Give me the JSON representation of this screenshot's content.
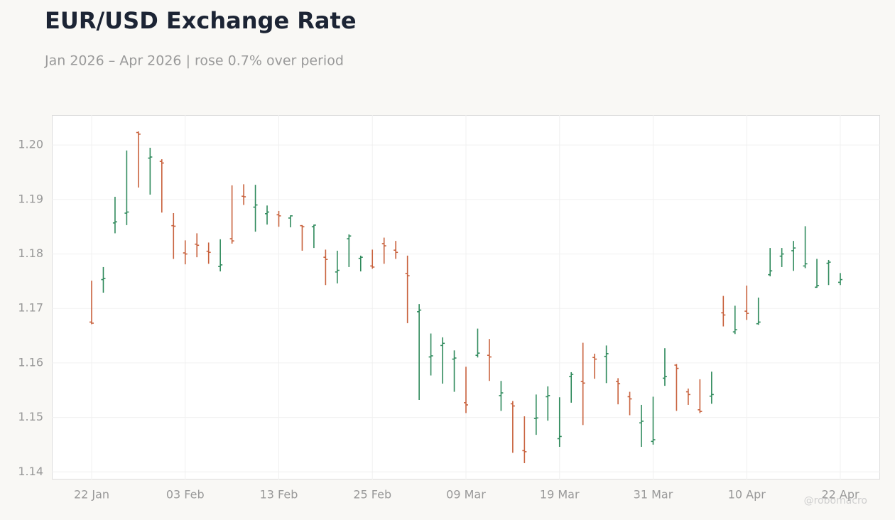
{
  "chart_data": {
    "type": "ohlc",
    "title": "EUR/USD Exchange Rate",
    "subtitle": "Jan 2026 – Apr 2026 | rose 0.7% over period",
    "watermark": "@robomacro",
    "up_color": "#2f8a5c",
    "down_color": "#c8613c",
    "grid": true,
    "x": [
      "2026-01-22",
      "2026-01-23",
      "2026-01-26",
      "2026-01-27",
      "2026-01-28",
      "2026-01-29",
      "2026-01-30",
      "2026-02-02",
      "2026-02-03",
      "2026-02-04",
      "2026-02-05",
      "2026-02-06",
      "2026-02-09",
      "2026-02-10",
      "2026-02-11",
      "2026-02-12",
      "2026-02-13",
      "2026-02-16",
      "2026-02-17",
      "2026-02-18",
      "2026-02-19",
      "2026-02-20",
      "2026-02-23",
      "2026-02-24",
      "2026-02-25",
      "2026-02-26",
      "2026-02-27",
      "2026-03-02",
      "2026-03-03",
      "2026-03-04",
      "2026-03-05",
      "2026-03-06",
      "2026-03-09",
      "2026-03-10",
      "2026-03-11",
      "2026-03-12",
      "2026-03-13",
      "2026-03-16",
      "2026-03-17",
      "2026-03-18",
      "2026-03-19",
      "2026-03-20",
      "2026-03-23",
      "2026-03-24",
      "2026-03-25",
      "2026-03-26",
      "2026-03-27",
      "2026-03-30",
      "2026-03-31",
      "2026-04-01",
      "2026-04-02",
      "2026-04-03",
      "2026-04-06",
      "2026-04-07",
      "2026-04-08",
      "2026-04-09",
      "2026-04-10",
      "2026-04-13",
      "2026-04-14",
      "2026-04-15",
      "2026-04-16",
      "2026-04-17",
      "2026-04-20",
      "2026-04-21",
      "2026-04-22"
    ],
    "open": [
      1.1675,
      1.1753,
      1.1857,
      1.1875,
      1.2023,
      1.1976,
      1.197,
      1.1852,
      1.1802,
      1.1818,
      1.1805,
      1.1777,
      1.1828,
      1.1906,
      1.1886,
      1.1874,
      1.1872,
      1.1866,
      1.1852,
      1.185,
      1.1794,
      1.1767,
      1.1828,
      1.1792,
      1.1778,
      1.1819,
      1.1807,
      1.1764,
      1.1694,
      1.1611,
      1.1632,
      1.1607,
      1.1527,
      1.1614,
      1.1614,
      1.154,
      1.1525,
      1.1439,
      1.1498,
      1.1538,
      1.1461,
      1.1575,
      1.1566,
      1.161,
      1.1612,
      1.1566,
      1.1538,
      1.149,
      1.1456,
      1.1572,
      1.1596,
      1.1547,
      1.1514,
      1.1539,
      1.1692,
      1.1657,
      1.1695,
      1.1672,
      1.1762,
      1.1796,
      1.1806,
      1.1778,
      1.1739,
      1.1783,
      1.1748
    ],
    "high": [
      1.1751,
      1.1776,
      1.1905,
      1.199,
      1.2025,
      1.1995,
      1.1974,
      1.1875,
      1.1825,
      1.1838,
      1.1821,
      1.1827,
      1.1926,
      1.1928,
      1.1927,
      1.1889,
      1.1879,
      1.1871,
      1.1853,
      1.1854,
      1.1808,
      1.1806,
      1.1836,
      1.1797,
      1.1808,
      1.183,
      1.1824,
      1.1797,
      1.1708,
      1.1654,
      1.1647,
      1.1623,
      1.1593,
      1.1663,
      1.1644,
      1.1567,
      1.153,
      1.1502,
      1.1542,
      1.1557,
      1.1537,
      1.1583,
      1.1637,
      1.1617,
      1.1632,
      1.1572,
      1.1547,
      1.1523,
      1.1538,
      1.1627,
      1.1598,
      1.1553,
      1.157,
      1.1584,
      1.1723,
      1.1705,
      1.1742,
      1.172,
      1.1811,
      1.1811,
      1.1824,
      1.1851,
      1.1791,
      1.1789,
      1.1765
    ],
    "low": [
      1.1671,
      1.1729,
      1.1838,
      1.1853,
      1.1922,
      1.1909,
      1.1876,
      1.1791,
      1.1781,
      1.1794,
      1.1782,
      1.1768,
      1.1819,
      1.189,
      1.1841,
      1.1854,
      1.185,
      1.1849,
      1.1806,
      1.1811,
      1.1743,
      1.1746,
      1.1776,
      1.1768,
      1.1773,
      1.1782,
      1.1791,
      1.1673,
      1.1532,
      1.1577,
      1.1562,
      1.1547,
      1.1508,
      1.161,
      1.1567,
      1.1512,
      1.1435,
      1.1416,
      1.1468,
      1.1494,
      1.1446,
      1.1527,
      1.1486,
      1.1571,
      1.1563,
      1.1524,
      1.1504,
      1.1446,
      1.145,
      1.1558,
      1.1512,
      1.1523,
      1.1508,
      1.1525,
      1.1667,
      1.1653,
      1.1679,
      1.167,
      1.1759,
      1.1776,
      1.1769,
      1.1774,
      1.1738,
      1.1743,
      1.1743
    ],
    "close": [
      1.1673,
      1.1755,
      1.1859,
      1.1877,
      1.202,
      1.1978,
      1.1967,
      1.1851,
      1.18,
      1.1816,
      1.1803,
      1.178,
      1.1824,
      1.1905,
      1.189,
      1.1877,
      1.187,
      1.187,
      1.185,
      1.1853,
      1.179,
      1.177,
      1.1833,
      1.1794,
      1.1776,
      1.1815,
      1.1803,
      1.176,
      1.1697,
      1.1613,
      1.1636,
      1.1609,
      1.1523,
      1.1618,
      1.1611,
      1.1545,
      1.1521,
      1.1437,
      1.1499,
      1.154,
      1.1465,
      1.1579,
      1.1563,
      1.1607,
      1.1617,
      1.1562,
      1.1534,
      1.1493,
      1.1459,
      1.1575,
      1.159,
      1.1542,
      1.1511,
      1.1542,
      1.1688,
      1.1661,
      1.1691,
      1.1675,
      1.1769,
      1.18,
      1.1811,
      1.1782,
      1.1742,
      1.1785,
      1.1753
    ],
    "ylim": [
      1.1386,
      1.2055
    ],
    "yticks": [
      {
        "value": 1.14,
        "label": "1.14"
      },
      {
        "value": 1.15,
        "label": "1.15"
      },
      {
        "value": 1.16,
        "label": "1.16"
      },
      {
        "value": 1.17,
        "label": "1.17"
      },
      {
        "value": 1.18,
        "label": "1.18"
      },
      {
        "value": 1.19,
        "label": "1.19"
      },
      {
        "value": 1.2,
        "label": "1.20"
      }
    ],
    "xticks": [
      {
        "value": "2026-01-22",
        "label": "22 Jan"
      },
      {
        "value": "2026-02-03",
        "label": "03 Feb"
      },
      {
        "value": "2026-02-13",
        "label": "13 Feb"
      },
      {
        "value": "2026-02-25",
        "label": "25 Feb"
      },
      {
        "value": "2026-03-09",
        "label": "09 Mar"
      },
      {
        "value": "2026-03-19",
        "label": "19 Mar"
      },
      {
        "value": "2026-03-31",
        "label": "31 Mar"
      },
      {
        "value": "2026-04-10",
        "label": "10 Apr"
      },
      {
        "value": "2026-04-22",
        "label": "22 Apr"
      }
    ]
  }
}
